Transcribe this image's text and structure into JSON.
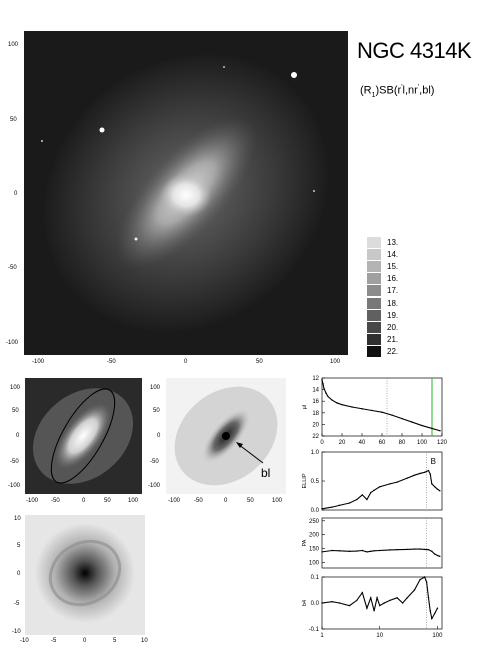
{
  "galaxy_name": "NGC 4314K",
  "classification": {
    "prefix": "(R",
    "subscript": "1",
    "middle": ")SB(r",
    "sup1": "'",
    "middle2": "l,nr",
    "sup2": "'",
    "suffix": ",bl)"
  },
  "main_image": {
    "x_ticks": [
      "-100",
      "-50",
      "0",
      "50",
      "100"
    ],
    "y_ticks": [
      "100",
      "50",
      "0",
      "-50",
      "-100"
    ]
  },
  "colorbar": {
    "labels": [
      "13.",
      "14.",
      "15.",
      "16.",
      "17.",
      "18.",
      "19.",
      "20.",
      "21.",
      "22."
    ],
    "colors": [
      "#dcdcdc",
      "#c8c8c8",
      "#b4b4b4",
      "#a0a0a0",
      "#8c8c8c",
      "#787878",
      "#606060",
      "#484848",
      "#303030",
      "#101010"
    ]
  },
  "panel_a": {
    "x_ticks": [
      "-100",
      "-50",
      "0",
      "50",
      "100"
    ],
    "y_ticks": [
      "100",
      "50",
      "0",
      "-50",
      "-100"
    ]
  },
  "panel_b": {
    "x_ticks": [
      "-100",
      "-50",
      "0",
      "50",
      "100"
    ],
    "y_ticks": [
      "100",
      "50",
      "0",
      "-50",
      "-100"
    ],
    "annotation": "bl"
  },
  "panel_c": {
    "x_ticks": [
      "-10",
      "-5",
      "0",
      "5",
      "10"
    ],
    "y_ticks": [
      "10",
      "5",
      "0",
      "-5",
      "-10"
    ]
  },
  "chart_data": [
    {
      "type": "line",
      "title": "",
      "ylabel": "μI",
      "xlabel": "",
      "x_ticks": [
        "0",
        "20",
        "40",
        "60",
        "80",
        "100",
        "120"
      ],
      "y_ticks": [
        "12",
        "14",
        "16",
        "18",
        "20",
        "22"
      ],
      "xlim": [
        0,
        120
      ],
      "ylim": [
        22,
        12
      ],
      "x": [
        0,
        1,
        2,
        4,
        6,
        10,
        15,
        20,
        30,
        40,
        50,
        60,
        70,
        80,
        90,
        100,
        110,
        118
      ],
      "y": [
        12.3,
        13.0,
        13.8,
        14.6,
        15.2,
        15.8,
        16.3,
        16.6,
        17.0,
        17.3,
        17.6,
        17.9,
        18.4,
        19.0,
        19.6,
        20.2,
        20.7,
        21.1
      ],
      "markers": [
        {
          "x": 65,
          "style": "dotted"
        },
        {
          "x": 110,
          "color": "#22bb22"
        }
      ]
    },
    {
      "type": "line",
      "ylabel": "ELLIP",
      "y_ticks": [
        "0.0",
        "0.5",
        "1.0"
      ],
      "ylim": [
        0,
        1
      ],
      "xscale": "log",
      "xlim": [
        1,
        120
      ],
      "annotation": "B",
      "x": [
        1,
        1.5,
        2,
        3,
        4,
        5,
        6,
        7,
        8,
        10,
        15,
        20,
        30,
        40,
        50,
        60,
        70,
        75,
        80,
        90,
        100,
        110
      ],
      "y": [
        0.02,
        0.05,
        0.08,
        0.12,
        0.18,
        0.26,
        0.18,
        0.3,
        0.34,
        0.4,
        0.45,
        0.48,
        0.55,
        0.6,
        0.63,
        0.65,
        0.68,
        0.62,
        0.45,
        0.4,
        0.36,
        0.33
      ]
    },
    {
      "type": "line",
      "ylabel": "PA",
      "y_ticks": [
        "100",
        "150",
        "200",
        "250"
      ],
      "ylim": [
        80,
        260
      ],
      "xscale": "log",
      "xlim": [
        1,
        120
      ],
      "x": [
        1,
        1.5,
        2,
        3,
        4,
        5,
        6,
        7,
        8,
        10,
        15,
        20,
        30,
        40,
        50,
        60,
        70,
        80,
        90,
        100,
        110
      ],
      "y": [
        138,
        143,
        142,
        140,
        141,
        143,
        138,
        140,
        142,
        143,
        145,
        146,
        147,
        148,
        148,
        147,
        146,
        140,
        130,
        125,
        122
      ]
    },
    {
      "type": "line",
      "ylabel": "b4",
      "y_ticks": [
        "-0.1",
        "0.0",
        "0.1"
      ],
      "x_ticks": [
        "1",
        "10",
        "100"
      ],
      "ylim": [
        -0.1,
        0.1
      ],
      "xscale": "log",
      "xlim": [
        1,
        120
      ],
      "x": [
        1,
        1.5,
        2,
        3,
        4,
        5,
        6,
        7,
        8,
        9,
        10,
        12,
        15,
        20,
        25,
        30,
        40,
        50,
        60,
        65,
        70,
        75,
        80,
        90,
        100
      ],
      "y": [
        0.0,
        0.005,
        0.0,
        -0.01,
        0.01,
        0.04,
        -0.02,
        0.02,
        -0.03,
        0.02,
        -0.01,
        0.0,
        0.01,
        0.02,
        0.0,
        0.02,
        0.05,
        0.09,
        0.1,
        0.08,
        0.02,
        -0.03,
        -0.06,
        -0.04,
        -0.02
      ]
    }
  ]
}
